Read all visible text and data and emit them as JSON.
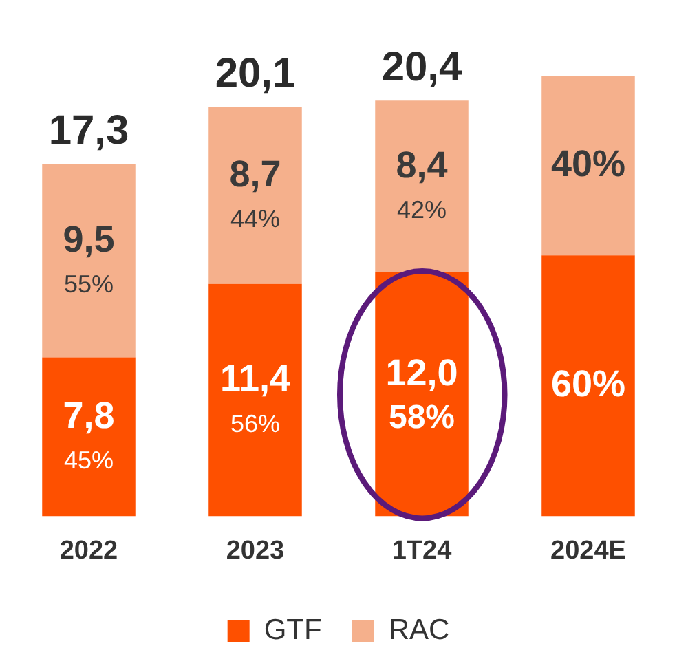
{
  "chart_data": {
    "type": "bar",
    "stacked": true,
    "categories": [
      "2022",
      "2023",
      "1T24",
      "2024E"
    ],
    "series": [
      {
        "name": "GTF",
        "color": "#fe5000",
        "values": [
          7.8,
          11.4,
          12.0,
          12.8
        ],
        "value_labels": [
          "7,8\n45%",
          "11,4\n56%",
          "12,0\n58%",
          null
        ]
      },
      {
        "name": "RAC",
        "color": "#f5b08c",
        "values": [
          9.5,
          8.7,
          8.4,
          8.8
        ],
        "value_labels": [
          "9,5\n55%",
          "8,7\n44%",
          "8,4\n42%",
          null
        ]
      }
    ],
    "totals": [
      "17,3",
      "20,1",
      "20,4",
      null
    ],
    "annotations": [
      {
        "text": "60%",
        "x": "2024E",
        "y": 12.8
      },
      {
        "text": "40%",
        "x": "2024E",
        "y": 21.6
      }
    ],
    "tick_labels": "x",
    "grid": false,
    "legend": "bottom"
  }
}
